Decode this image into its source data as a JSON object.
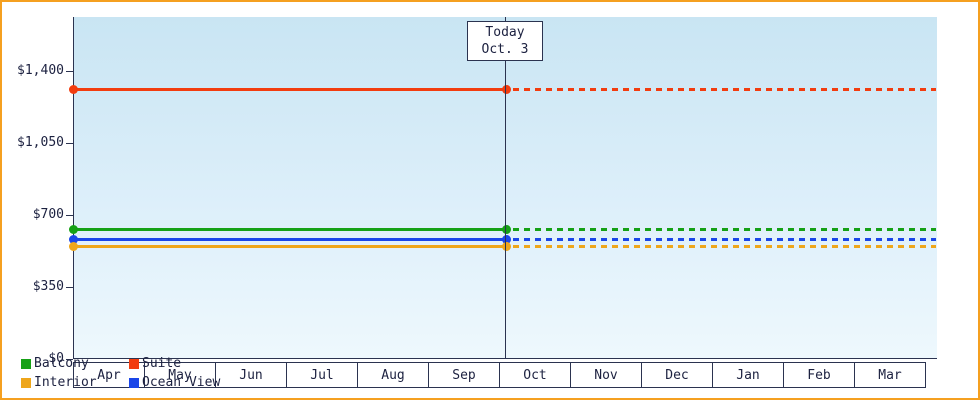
{
  "frame": {
    "border_color": "#f5a020",
    "plot_background_top": "#c9e5f3",
    "plot_background_bottom": "#eef8fd"
  },
  "today_label": {
    "line1": "Today",
    "line2": "Oct. 3"
  },
  "legend": {
    "position": "bottom-left-inside-plot",
    "items": [
      {
        "label": "Balcony",
        "color": "#16a116"
      },
      {
        "label": "Suite",
        "color": "#f23c0f"
      },
      {
        "label": "Interior",
        "color": "#eea61b"
      },
      {
        "label": "Ocean View",
        "color": "#1a46e8"
      }
    ]
  },
  "chart_data": {
    "type": "line",
    "title": "",
    "xlabel": "",
    "ylabel": "",
    "categories": [
      "Apr",
      "May",
      "Jun",
      "Jul",
      "Aug",
      "Sep",
      "Oct",
      "Nov",
      "Dec",
      "Jan",
      "Feb",
      "Mar"
    ],
    "y_ticks": [
      {
        "label": "$1,400",
        "value": 1400
      },
      {
        "label": "$1,050",
        "value": 1050
      },
      {
        "label": "$700",
        "value": 700
      },
      {
        "label": "$350",
        "value": 350
      },
      {
        "label": "$0",
        "value": 0
      }
    ],
    "ylim": [
      0,
      1400
    ],
    "grid": false,
    "legend_position": "bottom-left",
    "line_style_note": "solid before today marker, dotted after today marker, round markers at series start and at today",
    "today": {
      "label": "Today Oct. 3",
      "boundary_index": 6,
      "boundary_between": "Sep|Oct"
    },
    "series": [
      {
        "name": "Suite",
        "color": "#f23c0f",
        "value": 1310
      },
      {
        "name": "Balcony",
        "color": "#16a116",
        "value": 630
      },
      {
        "name": "Ocean View",
        "color": "#1a46e8",
        "value": 580
      },
      {
        "name": "Interior",
        "color": "#eea61b",
        "value": 545
      }
    ]
  }
}
